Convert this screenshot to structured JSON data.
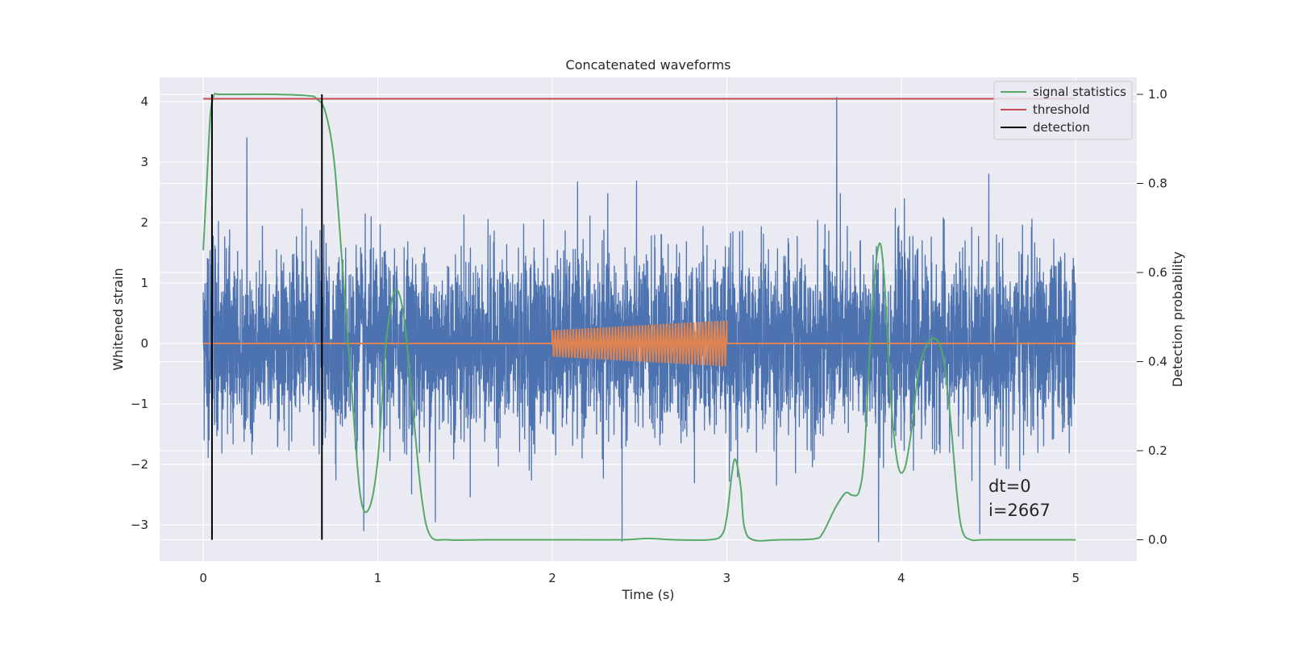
{
  "chart_data": {
    "type": "line",
    "title": "Concatenated waveforms",
    "xlabel": "Time (s)",
    "ylabel_left": "Whitened strain",
    "ylabel_right": "Detection probability",
    "xlim": [
      -0.25,
      5.35
    ],
    "ylim_left": [
      -3.6,
      4.4
    ],
    "ylim_right": [
      -0.048,
      1.038
    ],
    "x_ticks": [
      0,
      1,
      2,
      3,
      4,
      5
    ],
    "y_left_ticks": [
      -3,
      -2,
      -1,
      0,
      1,
      2,
      3,
      4
    ],
    "y_right_ticks": [
      0.0,
      0.2,
      0.4,
      0.6,
      0.8,
      1.0
    ],
    "grid": true,
    "legend_position": "top-right",
    "legend": [
      "signal statistics",
      "threshold",
      "detection"
    ],
    "annotation": [
      "dt=0",
      "i=2667"
    ],
    "colors": {
      "strain": "#4c72b0",
      "template": "#dd8452",
      "signal_statistics": "#55a868",
      "threshold": "#c44e52",
      "detection": "#000000",
      "background": "#eaeaf2",
      "grid": "#ffffff"
    },
    "series": [
      {
        "name": "strain",
        "axis": "left",
        "description_points": {
          "x_range": [
            0,
            5
          ],
          "amplitude_typical": 1.5,
          "peaks": [
            [
              0.25,
              3.4
            ],
            [
              3.63,
              4.07
            ],
            [
              0.92,
              -3.1
            ],
            [
              1.33,
              -2.95
            ],
            [
              2.4,
              -3.27
            ],
            [
              3.87,
              -3.28
            ],
            [
              4.45,
              -3.15
            ]
          ]
        }
      },
      {
        "name": "template",
        "axis": "left",
        "chirp": {
          "x_start": 2.0,
          "x_end": 3.0,
          "amp_start": 0.22,
          "amp_end": 0.38
        }
      },
      {
        "name": "signal statistics",
        "axis": "right",
        "x": [
          0,
          0.02,
          0.04,
          0.06,
          0.08,
          0.1,
          0.2,
          0.4,
          0.6,
          0.65,
          0.7,
          0.75,
          0.8,
          0.85,
          0.9,
          0.95,
          1.0,
          1.05,
          1.1,
          1.15,
          1.2,
          1.25,
          1.3,
          1.4,
          1.6,
          2.0,
          2.4,
          2.55,
          2.7,
          2.9,
          2.97,
          3.0,
          3.03,
          3.05,
          3.08,
          3.1,
          3.15,
          3.3,
          3.5,
          3.55,
          3.62,
          3.68,
          3.72,
          3.76,
          3.79,
          3.83,
          3.87,
          3.9,
          3.94,
          3.98,
          4.02,
          4.06,
          4.1,
          4.15,
          4.2,
          4.24,
          4.28,
          4.32,
          4.35,
          4.4,
          4.5,
          5.0
        ],
        "y": [
          0.65,
          0.8,
          0.95,
          0.997,
          1.0,
          1.0,
          1.0,
          1.0,
          0.997,
          0.99,
          0.96,
          0.85,
          0.6,
          0.34,
          0.1,
          0.07,
          0.18,
          0.45,
          0.56,
          0.5,
          0.3,
          0.1,
          0.01,
          0.0,
          0.0,
          0.0,
          0.0,
          0.003,
          0.0,
          0.0,
          0.01,
          0.05,
          0.15,
          0.18,
          0.12,
          0.03,
          0.0,
          0.0,
          0.002,
          0.015,
          0.07,
          0.105,
          0.1,
          0.11,
          0.2,
          0.5,
          0.66,
          0.6,
          0.32,
          0.17,
          0.16,
          0.25,
          0.38,
          0.44,
          0.45,
          0.41,
          0.28,
          0.1,
          0.02,
          0.0,
          0.0,
          0.0
        ]
      },
      {
        "name": "threshold",
        "axis": "right",
        "x": [
          0,
          5
        ],
        "y": [
          0.99,
          0.99
        ]
      },
      {
        "name": "detection",
        "axis": "right",
        "x_positions": [
          0.05,
          0.68
        ]
      }
    ]
  }
}
